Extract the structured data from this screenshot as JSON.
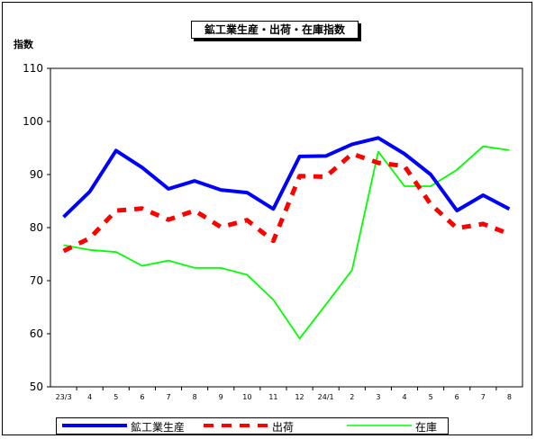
{
  "chart_data": {
    "type": "line",
    "title": "鉱工業生産・出荷・在庫指数",
    "ylabel": "指数",
    "xlabel": "",
    "ylim": [
      50,
      110
    ],
    "yticks": [
      "110",
      "100",
      "90",
      "80",
      "70",
      "60",
      "50"
    ],
    "categories": [
      "23/3",
      "4",
      "5",
      "6",
      "7",
      "8",
      "9",
      "10",
      "11",
      "12",
      "24/1",
      "2",
      "3",
      "4",
      "5",
      "6",
      "7",
      "8"
    ],
    "grid": false,
    "legend_position": "bottom",
    "series": [
      {
        "name": "鉱工業生産",
        "color": "#0000ff",
        "style": "solid",
        "values": [
          82.0,
          86.8,
          94.5,
          91.3,
          87.3,
          88.8,
          87.1,
          86.6,
          83.5,
          93.4,
          93.5,
          95.7,
          96.9,
          93.9,
          90.0,
          83.2,
          86.1,
          83.5
        ]
      },
      {
        "name": "出荷",
        "color": "#ff0000",
        "style": "dashed",
        "values": [
          75.6,
          78.0,
          83.2,
          83.6,
          81.5,
          83.2,
          80.1,
          81.4,
          77.5,
          89.7,
          89.6,
          93.9,
          92.2,
          91.6,
          84.4,
          79.9,
          80.7,
          78.8
        ]
      },
      {
        "name": "在庫",
        "color": "#00ff00",
        "style": "solid",
        "values": [
          76.7,
          75.8,
          75.4,
          72.8,
          73.8,
          72.4,
          72.4,
          71.1,
          66.4,
          59.1,
          65.5,
          72.0,
          94.3,
          87.8,
          87.8,
          90.9,
          95.3,
          94.6
        ]
      }
    ]
  }
}
